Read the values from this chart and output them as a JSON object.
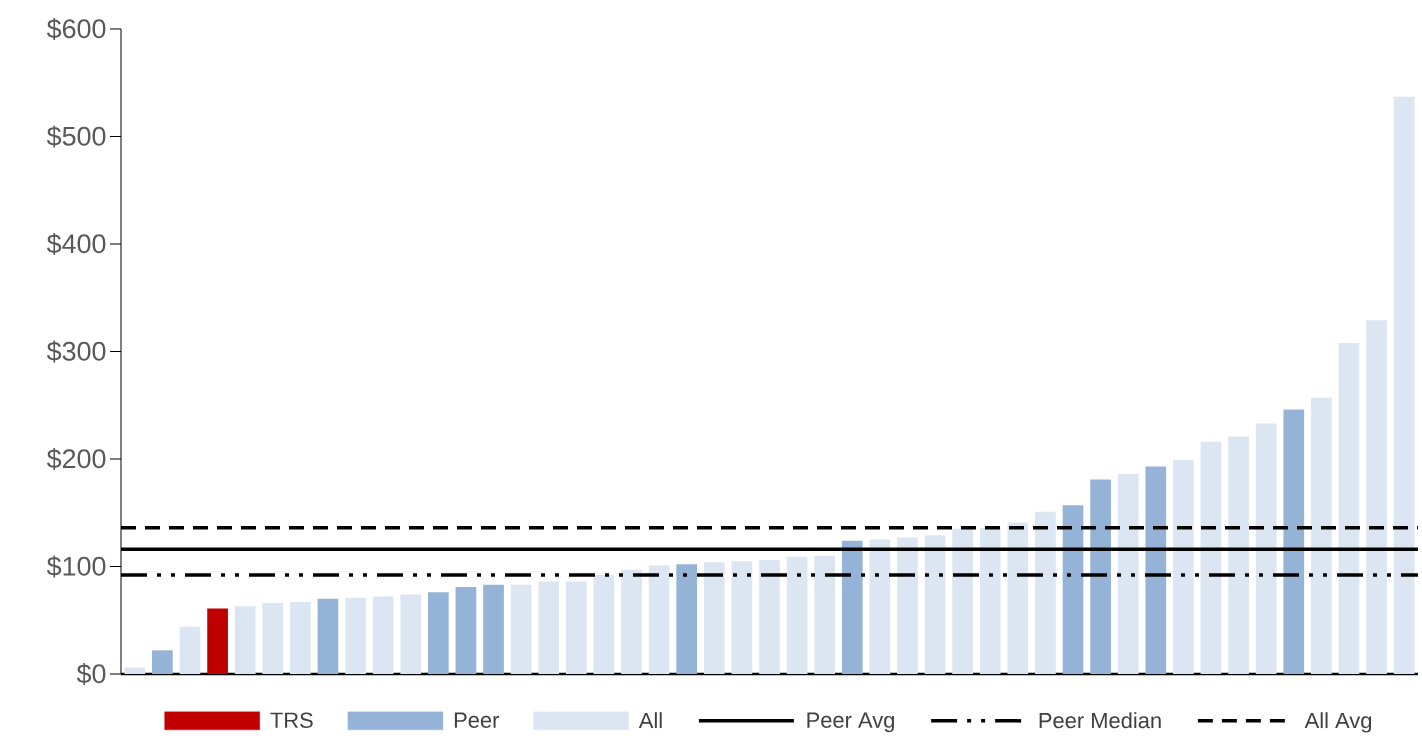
{
  "chart_data": {
    "type": "bar",
    "categories": [
      null,
      null,
      null,
      null,
      null,
      null,
      null,
      null,
      null,
      null,
      null,
      null,
      null,
      null,
      null,
      null,
      null,
      null,
      null,
      null,
      null,
      null,
      null,
      null,
      null,
      null,
      null,
      null,
      null,
      null,
      null,
      null,
      null,
      null,
      null,
      null,
      null,
      null,
      null,
      null,
      null,
      null,
      null,
      null,
      null,
      null,
      null
    ],
    "series": [
      {
        "name": "TRS",
        "color": "#c00000",
        "values": [
          null,
          null,
          null,
          61,
          null,
          null,
          null,
          null,
          null,
          null,
          null,
          null,
          null,
          null,
          null,
          null,
          null,
          null,
          null,
          null,
          null,
          null,
          null,
          null,
          null,
          null,
          null,
          null,
          null,
          null,
          null,
          null,
          null,
          null,
          null,
          null,
          null,
          null,
          null,
          null,
          null,
          null,
          null,
          null,
          null,
          null,
          null
        ]
      },
      {
        "name": "Peer",
        "color": "#95b3d7",
        "values": [
          null,
          22,
          null,
          null,
          null,
          null,
          null,
          70,
          null,
          null,
          null,
          76,
          81,
          83,
          null,
          null,
          null,
          null,
          null,
          null,
          102,
          null,
          null,
          null,
          null,
          null,
          124,
          null,
          null,
          null,
          null,
          null,
          null,
          null,
          157,
          181,
          null,
          193,
          null,
          null,
          null,
          null,
          246,
          null,
          null,
          null,
          null
        ]
      },
      {
        "name": "All",
        "color": "#dce6f2",
        "values": [
          6,
          null,
          44,
          null,
          63,
          66,
          67,
          null,
          71,
          72,
          74,
          null,
          null,
          null,
          83,
          86,
          86,
          92,
          97,
          101,
          null,
          104,
          105,
          106,
          109,
          110,
          null,
          125,
          127,
          129,
          135,
          136,
          141,
          151,
          null,
          null,
          186,
          null,
          199,
          216,
          221,
          233,
          null,
          257,
          308,
          329,
          537
        ]
      }
    ],
    "ylim": [
      0,
      600
    ],
    "yticks": [
      {
        "value": 0,
        "label": "$0"
      },
      {
        "value": 100,
        "label": "$100"
      },
      {
        "value": 200,
        "label": "$200"
      },
      {
        "value": 300,
        "label": "$300"
      },
      {
        "value": 400,
        "label": "$400"
      },
      {
        "value": 500,
        "label": "$500"
      },
      {
        "value": 600,
        "label": "$600"
      }
    ],
    "ref_lines": [
      {
        "axis": "y",
        "value": 116,
        "label": "Peer Avg",
        "color": "#000000",
        "line_style": "solid"
      },
      {
        "axis": "y",
        "value": 92,
        "label": "Peer Median",
        "color": "#000000",
        "line_style": "dashdotdotted"
      },
      {
        "axis": "y",
        "value": 136,
        "label": "All Avg",
        "color": "#000000",
        "line_style": "dashed"
      }
    ],
    "legend": "bottom"
  }
}
